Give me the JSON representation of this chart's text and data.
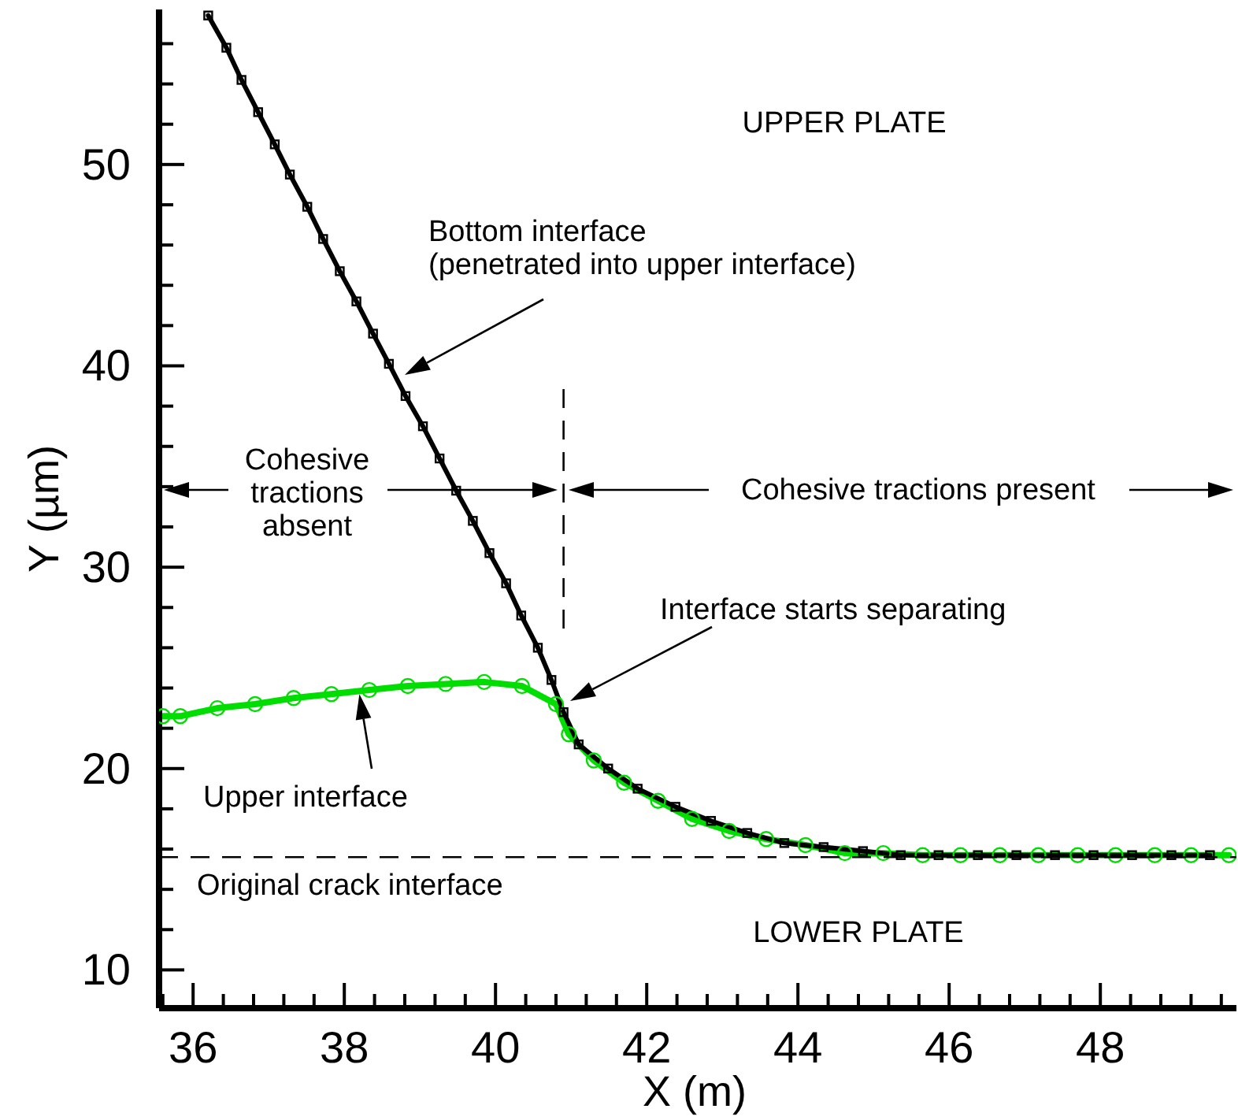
{
  "chart_data": {
    "type": "line",
    "xlabel": "X (m)",
    "ylabel": "Y (µm)",
    "xlim": [
      35.55,
      49.8
    ],
    "ylim": [
      8.1,
      57.7
    ],
    "xticks": [
      {
        "value": 35.6,
        "label": null
      },
      36,
      {
        "value": 36.4,
        "label": null
      },
      {
        "value": 36.8,
        "label": null
      },
      {
        "value": 37.2,
        "label": null
      },
      {
        "value": 37.6,
        "label": null
      },
      38,
      {
        "value": 38.4,
        "label": null
      },
      {
        "value": 38.8,
        "label": null
      },
      {
        "value": 39.2,
        "label": null
      },
      {
        "value": 39.6,
        "label": null
      },
      40,
      {
        "value": 40.4,
        "label": null
      },
      {
        "value": 40.8,
        "label": null
      },
      {
        "value": 41.2,
        "label": null
      },
      {
        "value": 41.6,
        "label": null
      },
      42,
      {
        "value": 42.4,
        "label": null
      },
      {
        "value": 42.8,
        "label": null
      },
      {
        "value": 43.2,
        "label": null
      },
      {
        "value": 43.6,
        "label": null
      },
      44,
      {
        "value": 44.4,
        "label": null
      },
      {
        "value": 44.8,
        "label": null
      },
      {
        "value": 45.2,
        "label": null
      },
      {
        "value": 45.6,
        "label": null
      },
      46,
      {
        "value": 46.4,
        "label": null
      },
      {
        "value": 46.8,
        "label": null
      },
      {
        "value": 47.2,
        "label": null
      },
      {
        "value": 47.6,
        "label": null
      },
      48,
      {
        "value": 48.4,
        "label": null
      },
      {
        "value": 48.8,
        "label": null
      },
      {
        "value": 49.2,
        "label": null
      },
      {
        "value": 49.6,
        "label": null
      }
    ],
    "yticks": [
      10,
      {
        "value": 12,
        "label": null
      },
      {
        "value": 14,
        "label": null
      },
      {
        "value": 16,
        "label": null
      },
      {
        "value": 18,
        "label": null
      },
      20,
      {
        "value": 22,
        "label": null
      },
      {
        "value": 24,
        "label": null
      },
      {
        "value": 26,
        "label": null
      },
      {
        "value": 28,
        "label": null
      },
      30,
      {
        "value": 32,
        "label": null
      },
      {
        "value": 34,
        "label": null
      },
      {
        "value": 36,
        "label": null
      },
      {
        "value": 38,
        "label": null
      },
      40,
      {
        "value": 42,
        "label": null
      },
      {
        "value": 44,
        "label": null
      },
      {
        "value": 46,
        "label": null
      },
      {
        "value": 48,
        "label": null
      },
      50,
      {
        "value": 52,
        "label": null
      },
      {
        "value": 54,
        "label": null
      },
      {
        "value": 56,
        "label": null
      }
    ],
    "series": [
      {
        "color": "#00dd00",
        "marker": "circle",
        "x": [
          35.6,
          35.83,
          36.32,
          36.82,
          37.33,
          37.83,
          38.33,
          38.84,
          39.34,
          39.85,
          40.35,
          40.8,
          40.97,
          41.3,
          41.7,
          42.15,
          42.6,
          43.09,
          43.58,
          44.1,
          44.62,
          45.13,
          45.65,
          46.15,
          46.67,
          47.18,
          47.7,
          48.2,
          48.72,
          49.2,
          49.7
        ],
        "values": [
          22.6,
          22.6,
          23.0,
          23.2,
          23.5,
          23.7,
          23.9,
          24.1,
          24.2,
          24.3,
          24.1,
          23.2,
          21.7,
          20.4,
          19.3,
          18.4,
          17.5,
          16.9,
          16.5,
          16.2,
          15.8,
          15.8,
          15.7,
          15.7,
          15.7,
          15.7,
          15.7,
          15.7,
          15.7,
          15.7,
          15.7
        ]
      },
      {
        "color": "#000000",
        "marker": "square",
        "x": [
          36.2,
          36.44,
          36.64,
          36.86,
          37.08,
          37.28,
          37.51,
          37.72,
          37.94,
          38.16,
          38.38,
          38.59,
          38.81,
          39.04,
          39.26,
          39.48,
          39.7,
          39.92,
          40.14,
          40.34,
          40.56,
          40.74,
          40.9,
          41.1,
          41.49,
          41.88,
          42.38,
          42.85,
          43.33,
          43.82,
          44.34,
          44.86,
          45.36,
          45.86,
          46.38,
          46.89,
          47.4,
          47.91,
          48.42,
          48.94,
          49.45
        ],
        "values": [
          57.4,
          55.8,
          54.2,
          52.6,
          51.0,
          49.5,
          47.9,
          46.3,
          44.7,
          43.2,
          41.6,
          40.1,
          38.5,
          37.0,
          35.4,
          33.8,
          32.3,
          30.7,
          29.2,
          27.6,
          26.0,
          24.4,
          22.8,
          21.2,
          20.0,
          19.0,
          18.1,
          17.4,
          16.8,
          16.3,
          16.1,
          15.9,
          15.7,
          15.7,
          15.7,
          15.7,
          15.7,
          15.7,
          15.7,
          15.7,
          15.7
        ]
      }
    ],
    "ref_lines": [
      {
        "axis": "y",
        "value": 15.6,
        "label": "Original crack interface",
        "line_style": "dashed",
        "color": "#000000"
      },
      {
        "axis": "x",
        "value": 40.9,
        "label": null,
        "line_style": "dashed",
        "color": "#000000"
      }
    ],
    "annotations": [
      "UPPER PLATE",
      "Bottom interface\n(penetrated into upper interface)",
      "Cohesive\ntractions\nabsent",
      "Cohesive tractions present",
      "Interface starts separating",
      {
        "text": "Upper interface",
        "x": 38.2,
        "y": 23.7
      },
      "LOWER PLATE"
    ],
    "tick_labels": true
  }
}
